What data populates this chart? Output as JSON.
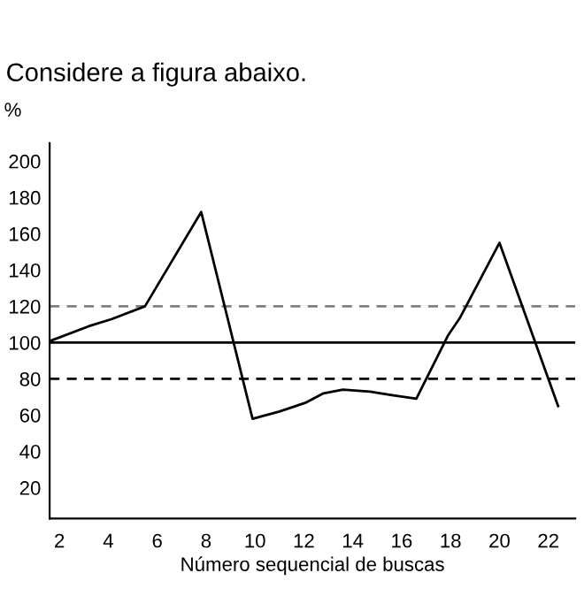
{
  "chart_data": {
    "type": "line",
    "title": "Considere a figura abaixo.",
    "ylabel": "%",
    "xlabel": "Número sequencial de buscas",
    "x": [
      1.64,
      3.2,
      4.15,
      5.5,
      7.8,
      9.9,
      11,
      12.1,
      12.8,
      13.6,
      14.7,
      15.6,
      16.6,
      17.9,
      18.4,
      20,
      22.4
    ],
    "series": [
      {
        "color": "#000000",
        "values": [
          101,
          109,
          113,
          120,
          172,
          58,
          62,
          67,
          72,
          74,
          73,
          71,
          69,
          104,
          114,
          155,
          65
        ]
      }
    ],
    "xlim": [
      1.6,
      23.1
    ],
    "xticks": [
      2,
      4,
      6,
      8,
      10,
      12,
      14,
      16,
      18,
      20,
      22
    ],
    "ylim": [
      3,
      210
    ],
    "yticks": [
      20,
      40,
      60,
      80,
      100,
      120,
      140,
      160,
      180,
      200
    ],
    "ref_lines": [
      {
        "axis": "y",
        "value": 120,
        "color": "#808080",
        "line_style": "dashed"
      },
      {
        "axis": "y",
        "value": 100,
        "color": "#000000",
        "line_style": "solid"
      },
      {
        "axis": "y",
        "value": 80,
        "color": "#000000",
        "line_style": "dashed"
      }
    ],
    "grid": false,
    "legend": false
  }
}
